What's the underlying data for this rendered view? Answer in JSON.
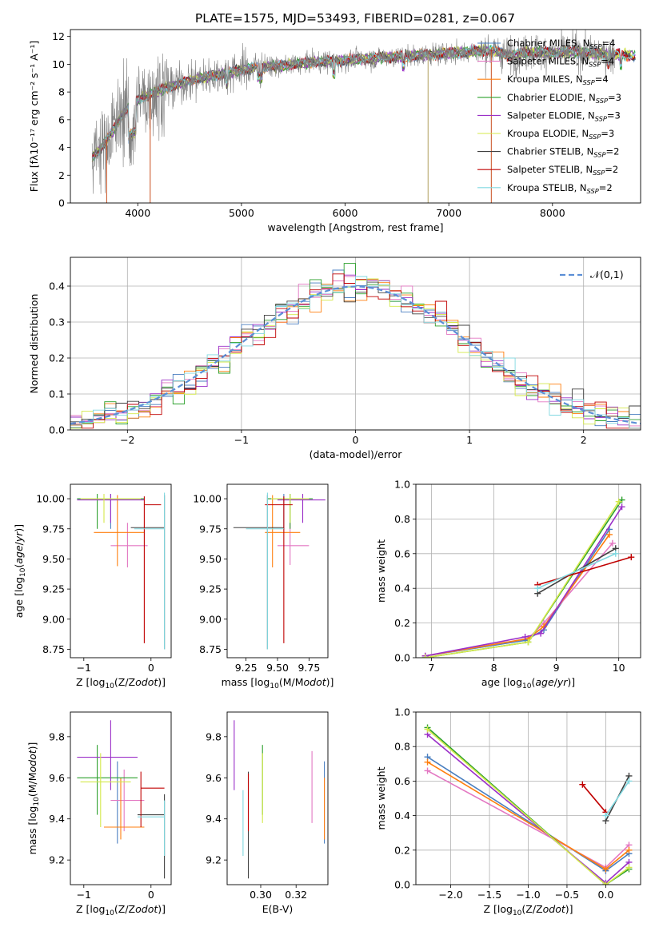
{
  "figure": {
    "title": "PLATE=1575, MJD=53493, FIBERID=0281, z=0.067"
  },
  "chart_data": [
    {
      "id": "spectrum",
      "type": "line",
      "xlabel": "wavelength [Angstrom, rest frame]",
      "ylabel": "Flux [fλ10⁻¹⁷ erg cm⁻² s⁻¹ A⁻¹]",
      "xlim": [
        3350,
        8850
      ],
      "ylim": [
        0,
        12.5
      ],
      "xticks": [
        4000,
        5000,
        6000,
        7000,
        8000
      ],
      "yticks": [
        0,
        2,
        4,
        6,
        8,
        10,
        12
      ],
      "data_color": "#808080",
      "continuum": {
        "x": [
          3550,
          3650,
          3750,
          3850,
          3950,
          4050,
          4200,
          4400,
          4600,
          4800,
          5000,
          5200,
          5400,
          5600,
          5800,
          6000,
          6200,
          6400,
          6600,
          6800,
          7000,
          7200,
          7400,
          7600,
          7800,
          8000,
          8200,
          8400,
          8600,
          8800
        ],
        "y": [
          3.2,
          4.0,
          5.1,
          6.4,
          7.2,
          7.6,
          8.1,
          8.6,
          9.0,
          9.3,
          9.6,
          9.8,
          9.9,
          10.1,
          10.2,
          10.3,
          10.4,
          10.5,
          10.6,
          10.7,
          10.8,
          10.9,
          11.0,
          10.6,
          10.9,
          10.8,
          10.9,
          10.8,
          10.7,
          10.6
        ]
      },
      "series": [
        {
          "name": "Chabrier MILES, N$_{SSP}$=4",
          "color": "#4a7fc0"
        },
        {
          "name": "Salpeter MILES, N$_{SSP}$=4",
          "color": "#e377c2"
        },
        {
          "name": "Kroupa MILES, N$_{SSP}$=4",
          "color": "#ff7f0e"
        },
        {
          "name": "Chabrier ELODIE, N$_{SSP}$=3",
          "color": "#2ca02c"
        },
        {
          "name": "Salpeter ELODIE, N$_{SSP}$=3",
          "color": "#9b30c8"
        },
        {
          "name": "Kroupa ELODIE, N$_{SSP}$=3",
          "color": "#d4e84a"
        },
        {
          "name": "Chabrier STELIB, N$_{SSP}$=2",
          "color": "#404040"
        },
        {
          "name": "Salpeter STELIB, N$_{SSP}$=2",
          "color": "#c00000"
        },
        {
          "name": "Kroupa STELIB, N$_{SSP}$=2",
          "color": "#80d8e0"
        }
      ],
      "legend": "right"
    },
    {
      "id": "residuals",
      "type": "histogram",
      "xlabel": "(data-model)/error",
      "ylabel": "Normed distribution",
      "xlim": [
        -2.5,
        2.5
      ],
      "ylim": [
        0,
        0.48
      ],
      "xticks": [
        -2,
        -1,
        0,
        1,
        2
      ],
      "yticks": [
        0.0,
        0.1,
        0.2,
        0.3,
        0.4
      ],
      "bin_width": 0.1,
      "bin_start": -2.5,
      "reference": {
        "name": "$\\mathcal{N}(0,1)$",
        "color": "#5b8fd6",
        "style": "dashed"
      },
      "grid": true,
      "legend": "top-right"
    },
    {
      "id": "age-vs-Z",
      "type": "errorbar",
      "xlabel": "Z [log$_{10}$($Z/Z_\\odot$)]",
      "ylabel": "age  [log$_{10}$($age/yr$)]",
      "xlim": [
        -1.2,
        0.3
      ],
      "ylim": [
        8.68,
        10.12
      ],
      "xticks": [
        -1,
        0
      ],
      "yticks": [
        8.75,
        9.0,
        9.25,
        9.5,
        9.75,
        10.0
      ],
      "points": [
        {
          "x": -0.6,
          "y": 10.0,
          "xlo": -1.1,
          "xhi": -0.1,
          "ylo": 9.75,
          "yhi": 10.04,
          "color": "#4a7fc0"
        },
        {
          "x": -0.35,
          "y": 9.61,
          "xlo": -0.6,
          "xhi": -0.05,
          "ylo": 9.43,
          "yhi": 9.8,
          "color": "#e377c2"
        },
        {
          "x": -0.5,
          "y": 9.72,
          "xlo": -0.85,
          "xhi": -0.1,
          "ylo": 9.44,
          "yhi": 10.03,
          "color": "#ff7f0e"
        },
        {
          "x": -0.8,
          "y": 10.0,
          "xlo": -1.1,
          "xhi": -0.1,
          "ylo": 9.75,
          "yhi": 10.04,
          "color": "#2ca02c"
        },
        {
          "x": -0.6,
          "y": 9.99,
          "xlo": -1.1,
          "xhi": -0.1,
          "ylo": 9.8,
          "yhi": 10.04,
          "color": "#9b30c8"
        },
        {
          "x": -0.7,
          "y": 10.0,
          "xlo": -1.05,
          "xhi": -0.15,
          "ylo": 9.8,
          "yhi": 10.04,
          "color": "#d4e84a"
        },
        {
          "x": 0.2,
          "y": 9.76,
          "xlo": -0.3,
          "xhi": 0.2,
          "ylo": 8.75,
          "yhi": 10.03,
          "color": "#404040"
        },
        {
          "x": -0.1,
          "y": 9.95,
          "xlo": -0.1,
          "xhi": 0.15,
          "ylo": 8.8,
          "yhi": 10.02,
          "color": "#c00000"
        },
        {
          "x": 0.2,
          "y": 9.75,
          "xlo": -0.25,
          "xhi": 0.2,
          "ylo": 8.75,
          "yhi": 10.05,
          "color": "#80d8e0"
        }
      ]
    },
    {
      "id": "age-vs-mass",
      "type": "errorbar",
      "xlabel": "mass [log$_{10}$($M/M_\\odot$)]",
      "ylabel": "",
      "xlim": [
        9.1,
        9.9
      ],
      "ylim": [
        8.68,
        10.12
      ],
      "xticks": [
        9.25,
        9.5,
        9.75
      ],
      "yticks": [
        8.75,
        9.0,
        9.25,
        9.5,
        9.75,
        10.0
      ],
      "points": [
        {
          "x": 9.55,
          "y": 10.0,
          "xlo": 9.42,
          "xhi": 9.75,
          "ylo": 9.74,
          "yhi": 10.04,
          "color": "#4a7fc0"
        },
        {
          "x": 9.6,
          "y": 9.61,
          "xlo": 9.5,
          "xhi": 9.75,
          "ylo": 9.45,
          "yhi": 9.8,
          "color": "#e377c2"
        },
        {
          "x": 9.46,
          "y": 9.72,
          "xlo": 9.4,
          "xhi": 9.68,
          "ylo": 9.43,
          "yhi": 10.03,
          "color": "#ff7f0e"
        },
        {
          "x": 9.6,
          "y": 10.0,
          "xlo": 9.42,
          "xhi": 9.78,
          "ylo": 9.75,
          "yhi": 10.04,
          "color": "#2ca02c"
        },
        {
          "x": 9.7,
          "y": 9.99,
          "xlo": 9.5,
          "xhi": 9.88,
          "ylo": 9.8,
          "yhi": 10.04,
          "color": "#9b30c8"
        },
        {
          "x": 9.6,
          "y": 10.0,
          "xlo": 9.45,
          "xhi": 9.75,
          "ylo": 9.8,
          "yhi": 10.04,
          "color": "#d4e84a"
        },
        {
          "x": 9.42,
          "y": 9.76,
          "xlo": 9.15,
          "xhi": 9.55,
          "ylo": 8.75,
          "yhi": 10.03,
          "color": "#404040"
        },
        {
          "x": 9.55,
          "y": 9.95,
          "xlo": 9.4,
          "xhi": 9.62,
          "ylo": 8.8,
          "yhi": 10.02,
          "color": "#c00000"
        },
        {
          "x": 9.42,
          "y": 9.75,
          "xlo": 9.25,
          "xhi": 9.55,
          "ylo": 8.75,
          "yhi": 10.05,
          "color": "#80d8e0"
        }
      ]
    },
    {
      "id": "weight-vs-age",
      "type": "line",
      "xlabel": "age  [log$_{10}$($age/yr$)]",
      "ylabel": "mass weight",
      "xlim": [
        6.75,
        10.35
      ],
      "ylim": [
        0,
        1.0
      ],
      "xticks": [
        7,
        8,
        9,
        10
      ],
      "yticks": [
        0.0,
        0.2,
        0.4,
        0.6,
        0.8,
        1.0
      ],
      "grid": true,
      "series": [
        {
          "color": "#4a7fc0",
          "x": [
            6.9,
            8.5,
            8.8,
            9.85
          ],
          "y": [
            0.01,
            0.1,
            0.16,
            0.74
          ]
        },
        {
          "color": "#e377c2",
          "x": [
            6.9,
            8.55,
            8.8,
            9.9
          ],
          "y": [
            0.01,
            0.11,
            0.2,
            0.66
          ]
        },
        {
          "color": "#ff7f0e",
          "x": [
            6.9,
            8.55,
            8.8,
            9.85
          ],
          "y": [
            0.01,
            0.11,
            0.18,
            0.71
          ]
        },
        {
          "color": "#2ca02c",
          "x": [
            6.9,
            8.55,
            10.05
          ],
          "y": [
            0.0,
            0.09,
            0.91
          ]
        },
        {
          "color": "#9b30c8",
          "x": [
            6.9,
            8.5,
            8.75,
            10.05
          ],
          "y": [
            0.01,
            0.12,
            0.14,
            0.87
          ]
        },
        {
          "color": "#d4e84a",
          "x": [
            6.9,
            8.55,
            10.0
          ],
          "y": [
            0.0,
            0.09,
            0.9
          ]
        },
        {
          "color": "#404040",
          "x": [
            8.7,
            9.95
          ],
          "y": [
            0.37,
            0.63
          ]
        },
        {
          "color": "#c00000",
          "x": [
            8.7,
            10.2
          ],
          "y": [
            0.42,
            0.58
          ]
        },
        {
          "color": "#80d8e0",
          "x": [
            8.7,
            9.95
          ],
          "y": [
            0.4,
            0.6
          ]
        }
      ]
    },
    {
      "id": "mass-vs-Z",
      "type": "errorbar",
      "xlabel": "Z [log$_{10}$($Z/Z_\\odot$)]",
      "ylabel": "mass [log$_{10}$($M/M_\\odot$)]",
      "xlim": [
        -1.2,
        0.3
      ],
      "ylim": [
        9.08,
        9.92
      ],
      "xticks": [
        -1,
        0
      ],
      "yticks": [
        9.2,
        9.4,
        9.6,
        9.8
      ],
      "points": [
        {
          "x": -0.5,
          "y": 9.36,
          "xlo": -0.7,
          "xhi": -0.1,
          "ylo": 9.28,
          "yhi": 9.68,
          "color": "#4a7fc0"
        },
        {
          "x": -0.4,
          "y": 9.49,
          "xlo": -0.6,
          "xhi": -0.1,
          "ylo": 9.34,
          "yhi": 9.64,
          "color": "#e377c2"
        },
        {
          "x": -0.45,
          "y": 9.36,
          "xlo": -0.7,
          "xhi": -0.1,
          "ylo": 9.3,
          "yhi": 9.6,
          "color": "#ff7f0e"
        },
        {
          "x": -0.8,
          "y": 9.6,
          "xlo": -1.1,
          "xhi": -0.2,
          "ylo": 9.42,
          "yhi": 9.76,
          "color": "#2ca02c"
        },
        {
          "x": -0.6,
          "y": 9.7,
          "xlo": -1.1,
          "xhi": -0.2,
          "ylo": 9.54,
          "yhi": 9.88,
          "color": "#9b30c8"
        },
        {
          "x": -0.75,
          "y": 9.58,
          "xlo": -1.05,
          "xhi": -0.3,
          "ylo": 9.36,
          "yhi": 9.72,
          "color": "#d4e84a"
        },
        {
          "x": 0.2,
          "y": 9.42,
          "xlo": -0.2,
          "xhi": 0.2,
          "ylo": 9.11,
          "yhi": 9.52,
          "color": "#404040"
        },
        {
          "x": -0.15,
          "y": 9.55,
          "xlo": -0.15,
          "xhi": 0.2,
          "ylo": 9.36,
          "yhi": 9.63,
          "color": "#c00000"
        },
        {
          "x": 0.2,
          "y": 9.41,
          "xlo": -0.2,
          "xhi": 0.2,
          "ylo": 9.22,
          "yhi": 9.49,
          "color": "#80d8e0"
        }
      ]
    },
    {
      "id": "mass-vs-EBV",
      "type": "errorbar",
      "xlabel": "E(B-V)",
      "ylabel": "",
      "xlim": [
        0.281,
        0.338
      ],
      "ylim": [
        9.08,
        9.92
      ],
      "xticks": [
        0.3,
        0.32
      ],
      "yticks": [
        9.2,
        9.4,
        9.6,
        9.8
      ],
      "points": [
        {
          "x": 0.336,
          "y": 9.47,
          "ylo": 9.28,
          "yhi": 9.68,
          "color": "#4a7fc0"
        },
        {
          "x": 0.329,
          "y": 9.55,
          "ylo": 9.38,
          "yhi": 9.73,
          "color": "#e377c2"
        },
        {
          "x": 0.336,
          "y": 9.45,
          "ylo": 9.3,
          "yhi": 9.6,
          "color": "#ff7f0e"
        },
        {
          "x": 0.301,
          "y": 9.58,
          "ylo": 9.42,
          "yhi": 9.76,
          "color": "#2ca02c"
        },
        {
          "x": 0.285,
          "y": 9.71,
          "ylo": 9.54,
          "yhi": 9.88,
          "color": "#9b30c8"
        },
        {
          "x": 0.301,
          "y": 9.55,
          "ylo": 9.38,
          "yhi": 9.72,
          "color": "#d4e84a"
        },
        {
          "x": 0.293,
          "y": 9.37,
          "ylo": 9.11,
          "yhi": 9.63,
          "color": "#404040"
        },
        {
          "x": 0.293,
          "y": 9.48,
          "ylo": 9.34,
          "yhi": 9.62,
          "color": "#c00000"
        },
        {
          "x": 0.29,
          "y": 9.38,
          "ylo": 9.22,
          "yhi": 9.54,
          "color": "#80d8e0"
        }
      ]
    },
    {
      "id": "weight-vs-Z",
      "type": "line",
      "xlabel": "Z [log$_{10}$($Z/Z_\\odot$)]",
      "ylabel": "mass weight",
      "xlim": [
        -2.45,
        0.45
      ],
      "ylim": [
        0,
        1.0
      ],
      "xticks": [
        -2.0,
        -1.5,
        -1.0,
        -0.5,
        0.0
      ],
      "yticks": [
        0.0,
        0.2,
        0.4,
        0.6,
        0.8,
        1.0
      ],
      "grid": true,
      "series": [
        {
          "color": "#4a7fc0",
          "x": [
            -2.3,
            0.0,
            0.3
          ],
          "y": [
            0.74,
            0.08,
            0.18
          ]
        },
        {
          "color": "#e377c2",
          "x": [
            -2.3,
            0.0,
            0.3
          ],
          "y": [
            0.66,
            0.1,
            0.23
          ]
        },
        {
          "color": "#ff7f0e",
          "x": [
            -2.3,
            0.0,
            0.3
          ],
          "y": [
            0.71,
            0.09,
            0.2
          ]
        },
        {
          "color": "#2ca02c",
          "x": [
            -2.3,
            0.0,
            0.3
          ],
          "y": [
            0.91,
            0.0,
            0.09
          ]
        },
        {
          "color": "#9b30c8",
          "x": [
            -2.3,
            0.0,
            0.3
          ],
          "y": [
            0.87,
            0.01,
            0.13
          ]
        },
        {
          "color": "#d4e84a",
          "x": [
            -2.3,
            0.0,
            0.3
          ],
          "y": [
            0.9,
            0.0,
            0.1
          ]
        },
        {
          "color": "#404040",
          "x": [
            0.0,
            0.3
          ],
          "y": [
            0.37,
            0.63
          ]
        },
        {
          "color": "#c00000",
          "x": [
            -0.3,
            0.0
          ],
          "y": [
            0.58,
            0.42
          ]
        },
        {
          "color": "#80d8e0",
          "x": [
            0.0,
            0.3
          ],
          "y": [
            0.4,
            0.6
          ]
        }
      ]
    }
  ]
}
